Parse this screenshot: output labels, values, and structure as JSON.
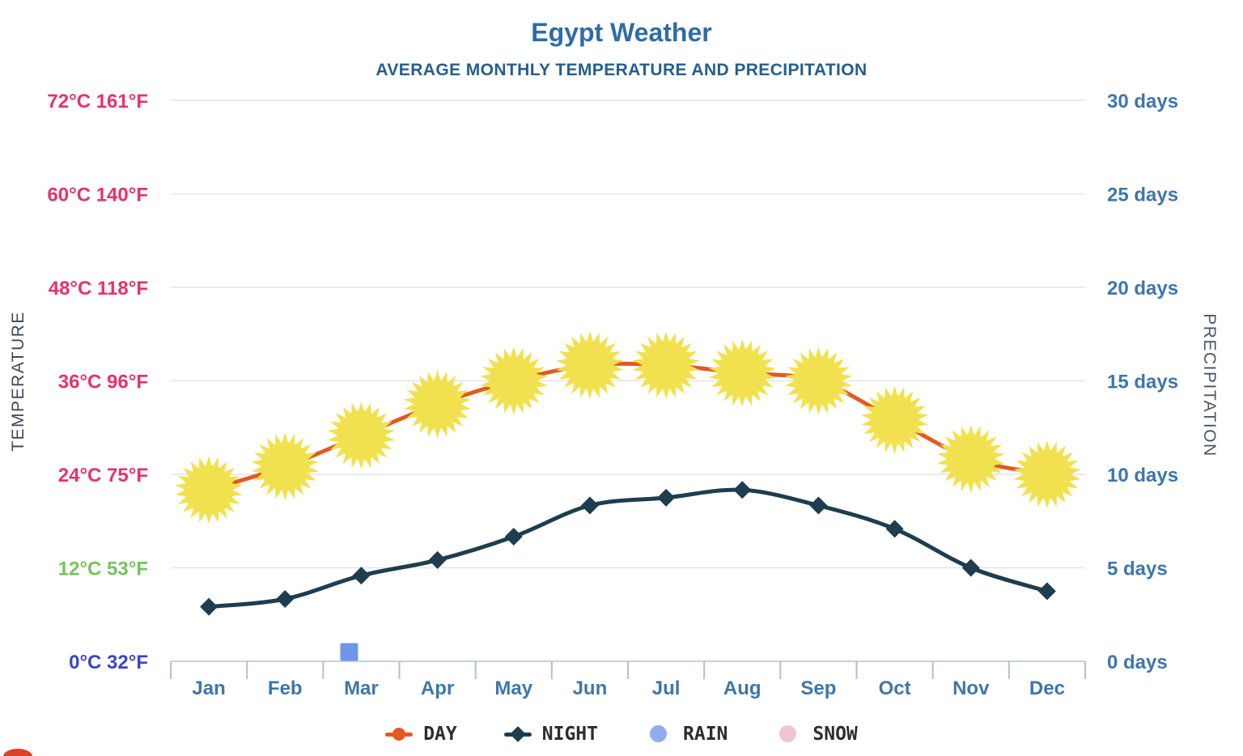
{
  "title": "Egypt Weather",
  "subtitle": "AVERAGE MONTHLY TEMPERATURE AND PRECIPITATION",
  "chart_data": {
    "type": "line",
    "title": "Egypt Weather",
    "subtitle": "AVERAGE MONTHLY TEMPERATURE AND PRECIPITATION",
    "categories": [
      "Jan",
      "Feb",
      "Mar",
      "Apr",
      "May",
      "Jun",
      "Jul",
      "Aug",
      "Sep",
      "Oct",
      "Nov",
      "Dec"
    ],
    "series": [
      {
        "name": "DAY",
        "axis": "temperature",
        "unit": "°C",
        "marker": "sun",
        "color": "#e25a20",
        "marker_color": "#f2e14e",
        "values": [
          22,
          25,
          29,
          33,
          36,
          38,
          38,
          37,
          36,
          31,
          26,
          24
        ]
      },
      {
        "name": "NIGHT",
        "axis": "temperature",
        "unit": "°C",
        "marker": "diamond",
        "color": "#1e3d50",
        "values": [
          7,
          8,
          11,
          13,
          16,
          20,
          21,
          22,
          20,
          17,
          12,
          9
        ]
      },
      {
        "name": "RAIN",
        "axis": "precipitation",
        "unit": "days",
        "marker": "square",
        "color": "#6f96e6",
        "values": [
          null,
          null,
          0.5,
          null,
          null,
          null,
          null,
          null,
          null,
          null,
          null,
          null
        ]
      },
      {
        "name": "SNOW",
        "axis": "precipitation",
        "unit": "days",
        "marker": "circle",
        "color": "#f1c3d5",
        "values": [
          null,
          null,
          null,
          null,
          null,
          null,
          null,
          null,
          null,
          null,
          null,
          null
        ]
      }
    ],
    "left_axis": {
      "title": "TEMPERATURE",
      "range_c": [
        0,
        72
      ],
      "ticks": [
        {
          "label": "0°C 32°F",
          "color": "#3b45c7"
        },
        {
          "label": "12°C 53°F",
          "color": "#74c45b"
        },
        {
          "label": "24°C 75°F",
          "color": "#e7316c"
        },
        {
          "label": "36°C 96°F",
          "color": "#e7316c"
        },
        {
          "label": "48°C 118°F",
          "color": "#e7316c"
        },
        {
          "label": "60°C 140°F",
          "color": "#e7316c"
        },
        {
          "label": "72°C 161°F",
          "color": "#e7316c"
        }
      ]
    },
    "right_axis": {
      "title": "PRECIPITATION",
      "range_days": [
        0,
        30
      ],
      "ticks": [
        "0 days",
        "5 days",
        "10 days",
        "15 days",
        "20 days",
        "25 days",
        "30 days"
      ],
      "color": "#3e76ab"
    },
    "grid": true,
    "legend_position": "bottom"
  },
  "legend": {
    "items": [
      {
        "label": "DAY",
        "type": "line-dot",
        "color": "#e25a20"
      },
      {
        "label": "NIGHT",
        "type": "line-diamond",
        "color": "#1e3d50"
      },
      {
        "label": "RAIN",
        "type": "dot",
        "color": "#8fadec"
      },
      {
        "label": "SNOW",
        "type": "dot",
        "color": "#f1c3d5"
      }
    ]
  }
}
